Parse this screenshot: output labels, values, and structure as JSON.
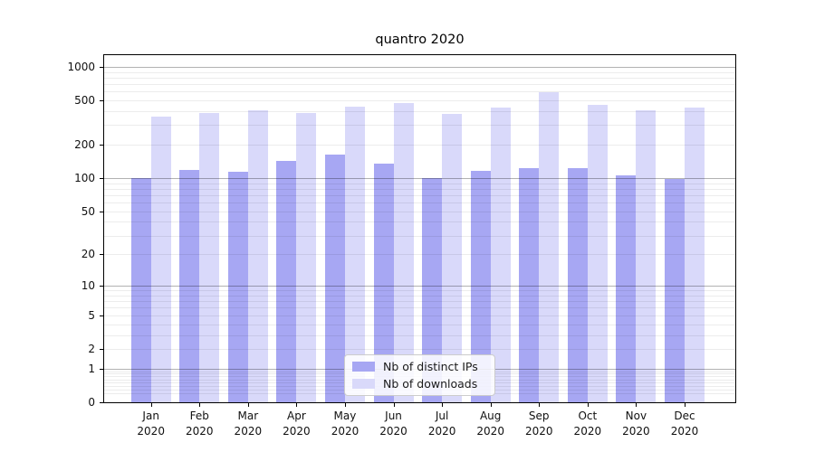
{
  "chart_data": {
    "type": "bar",
    "title": "quantro 2020",
    "categories": [
      "Jan 2020",
      "Feb 2020",
      "Mar 2020",
      "Apr 2020",
      "May 2020",
      "Jun 2020",
      "Jul 2020",
      "Aug 2020",
      "Sep 2020",
      "Oct 2020",
      "Nov 2020",
      "Dec 2020"
    ],
    "series": [
      {
        "name": "Nb of distinct IPs",
        "color": "#a7a7f3",
        "values": [
          100,
          118,
          115,
          144,
          164,
          134,
          101,
          117,
          123,
          122,
          106,
          98
        ]
      },
      {
        "name": "Nb of downloads",
        "color": "#d9d9fa",
        "values": [
          359,
          386,
          409,
          383,
          443,
          475,
          375,
          430,
          594,
          452,
          408,
          428
        ]
      }
    ],
    "xlabel": "",
    "ylabel": "",
    "yscale": "log1p",
    "y_tick_labels": [
      0,
      1,
      2,
      5,
      10,
      20,
      50,
      100,
      200,
      500,
      1000
    ],
    "ylim": [
      0,
      1300
    ],
    "grid": "major-and-minor",
    "legend_position": "lower-center"
  },
  "colors": {
    "bar_distinct_ips": "#a7a7f3",
    "bar_downloads": "#d9d9fa",
    "major_gridline": "#b3b3b3",
    "minor_gridline": "#e9e9e9",
    "axis_spine": "#000000",
    "tick_text": "#1a1a1a",
    "legend_border": "#cccccc",
    "legend_background": "#ffffff"
  }
}
